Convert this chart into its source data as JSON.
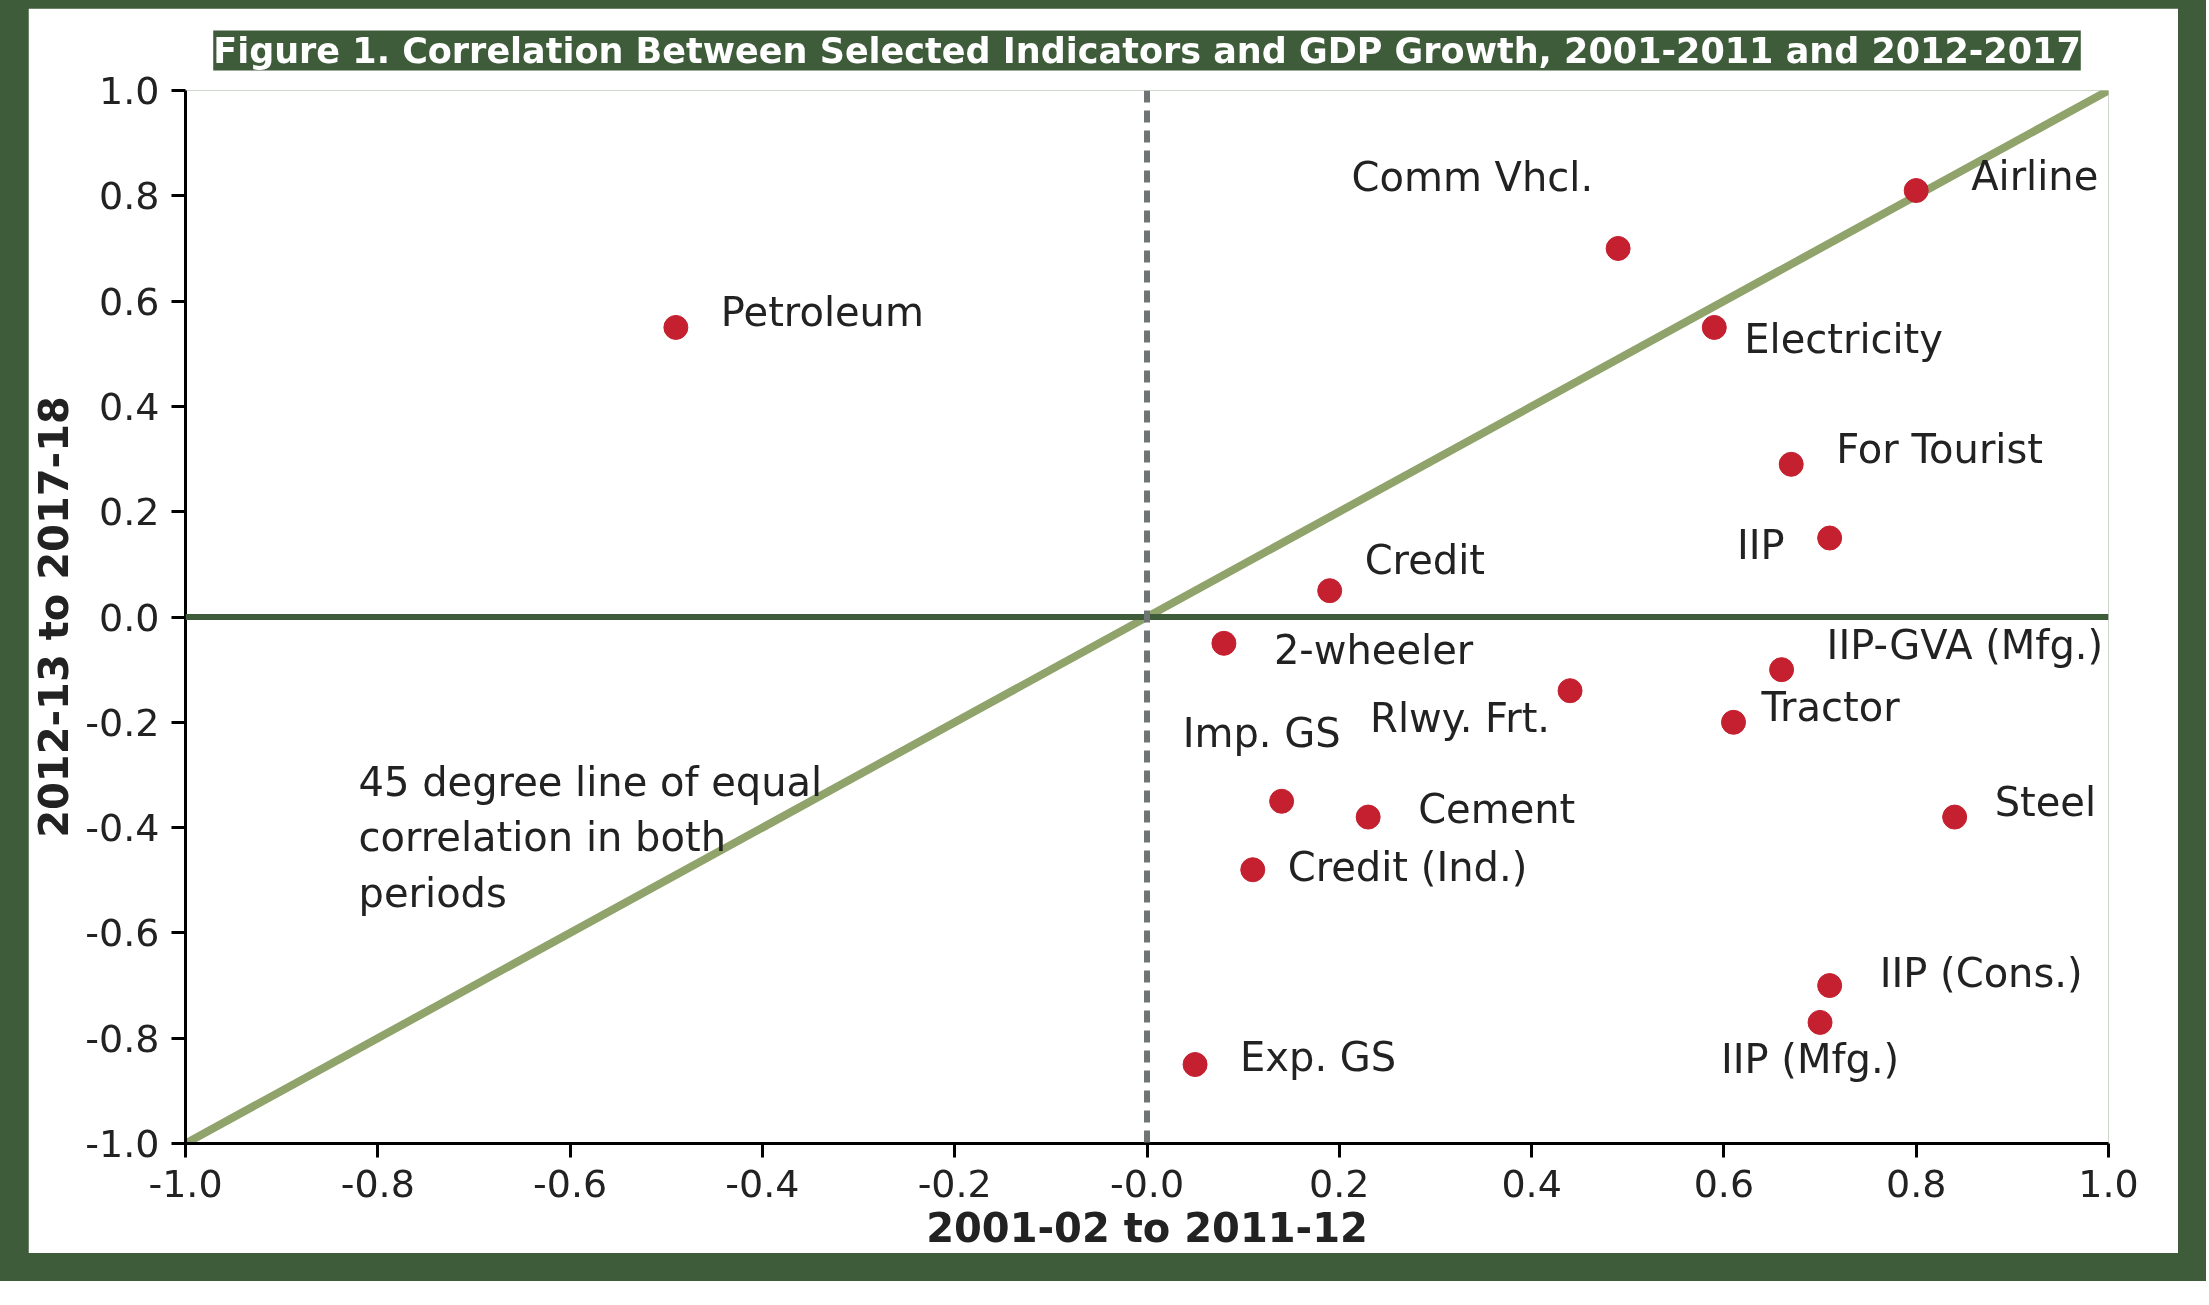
{
  "chart_data": {
    "type": "scatter",
    "title": "Figure 1. Correlation Between Selected Indicators and GDP Growth, 2001-2011 and 2012-2017",
    "xlabel": "2001-02 to 2011-12",
    "ylabel": "2012-13 to 2017-18",
    "xlim": [
      -1.0,
      1.0
    ],
    "ylim": [
      -1.0,
      1.0
    ],
    "xticks": [
      {
        "value": -1.0,
        "label": "-1.0"
      },
      {
        "value": -0.8,
        "label": "-0.8"
      },
      {
        "value": -0.6,
        "label": "-0.6"
      },
      {
        "value": -0.4,
        "label": "-0.4"
      },
      {
        "value": -0.2,
        "label": "-0.2"
      },
      {
        "value": 0,
        "label": "-0.0"
      },
      {
        "value": 0.2,
        "label": "0.2"
      },
      {
        "value": 0.4,
        "label": "0.4"
      },
      {
        "value": 0.6,
        "label": "0.6"
      },
      {
        "value": 0.8,
        "label": "0.8"
      },
      {
        "value": 1.0,
        "label": "1.0"
      }
    ],
    "yticks": [
      {
        "value": -1.0,
        "label": "-1.0"
      },
      {
        "value": -0.8,
        "label": "-0.8"
      },
      {
        "value": -0.6,
        "label": "-0.6"
      },
      {
        "value": -0.4,
        "label": "-0.4"
      },
      {
        "value": -0.2,
        "label": "-0.2"
      },
      {
        "value": 0,
        "label": "0.0"
      },
      {
        "value": 0.2,
        "label": "0.2"
      },
      {
        "value": 0.4,
        "label": "0.4"
      },
      {
        "value": 0.6,
        "label": "0.6"
      },
      {
        "value": 0.8,
        "label": "0.8"
      },
      {
        "value": 1.0,
        "label": "1.0"
      }
    ],
    "marker": "circle",
    "ref_lines": [
      {
        "axis": "y",
        "value": 0,
        "color": "#3e5b3a",
        "line_style": "solid"
      },
      {
        "axis": "x",
        "value": 0,
        "color": "#6f7474",
        "line_style": "dashed"
      }
    ],
    "annotations": [
      "45 degree line of equal\ncorrelation in both\nperiods"
    ],
    "series": [
      {
        "type": "line",
        "marker": "none",
        "color": "#8fa36b",
        "x": [
          -1.0,
          1.0
        ],
        "values": [
          -1.0,
          1.0
        ]
      },
      {
        "name": "Petroleum",
        "color": "#c4202f",
        "x": [
          -0.49
        ],
        "values": [
          0.55
        ]
      },
      {
        "name": "Comm Vhcl.",
        "color": "#c4202f",
        "x": [
          0.49
        ],
        "values": [
          0.7
        ]
      },
      {
        "name": "Airline",
        "color": "#c4202f",
        "x": [
          0.8
        ],
        "values": [
          0.81
        ]
      },
      {
        "name": "Electricity",
        "color": "#c4202f",
        "x": [
          0.59
        ],
        "values": [
          0.55
        ]
      },
      {
        "name": "For Tourist",
        "color": "#c4202f",
        "x": [
          0.67
        ],
        "values": [
          0.29
        ]
      },
      {
        "name": "IIP",
        "color": "#c4202f",
        "x": [
          0.71
        ],
        "values": [
          0.15
        ]
      },
      {
        "name": "Credit",
        "color": "#c4202f",
        "x": [
          0.19
        ],
        "values": [
          0.05
        ]
      },
      {
        "name": "2-wheeler",
        "color": "#c4202f",
        "x": [
          0.08
        ],
        "values": [
          -0.05
        ]
      },
      {
        "name": "IIP-GVA (Mfg.)",
        "color": "#c4202f",
        "x": [
          0.66
        ],
        "values": [
          -0.1
        ]
      },
      {
        "name": "Rlwy. Frt.",
        "color": "#c4202f",
        "x": [
          0.44
        ],
        "values": [
          -0.14
        ]
      },
      {
        "name": "Tractor",
        "color": "#c4202f",
        "x": [
          0.61
        ],
        "values": [
          -0.2
        ]
      },
      {
        "name": "Imp. GS",
        "color": "#c4202f",
        "x": [
          0.14
        ],
        "values": [
          -0.35
        ]
      },
      {
        "name": "Cement",
        "color": "#c4202f",
        "x": [
          0.23
        ],
        "values": [
          -0.38
        ]
      },
      {
        "name": "Steel",
        "color": "#c4202f",
        "x": [
          0.84
        ],
        "values": [
          -0.38
        ]
      },
      {
        "name": "Credit (Ind.)",
        "color": "#c4202f",
        "x": [
          0.11
        ],
        "values": [
          -0.48
        ]
      },
      {
        "name": "IIP (Cons.)",
        "color": "#c4202f",
        "x": [
          0.71
        ],
        "values": [
          -0.7
        ]
      },
      {
        "name": "IIP (Mfg.)",
        "color": "#c4202f",
        "x": [
          0.7
        ],
        "values": [
          -0.77
        ]
      },
      {
        "name": "Exp. GS",
        "color": "#c4202f",
        "x": [
          0.05
        ],
        "values": [
          -0.85
        ]
      }
    ]
  }
}
